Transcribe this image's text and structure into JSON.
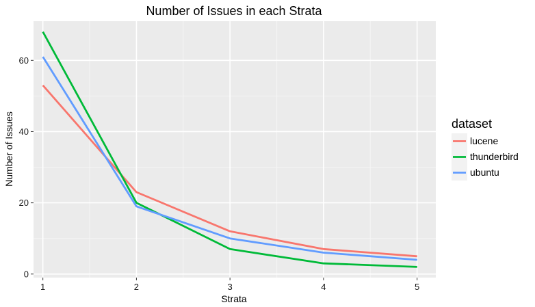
{
  "chart_data": {
    "type": "line",
    "title": "Number of Issues in each Strata",
    "xlabel": "Strata",
    "ylabel": "Number of Issues",
    "x": [
      1,
      2,
      3,
      4,
      5
    ],
    "xlim": [
      0.9,
      5.2
    ],
    "ylim": [
      -1,
      71
    ],
    "xticks": [
      1,
      2,
      3,
      4,
      5
    ],
    "yticks": [
      0,
      20,
      40,
      60
    ],
    "grid": true,
    "legend": {
      "title": "dataset",
      "position": "right"
    },
    "series": [
      {
        "name": "lucene",
        "color": "#F8766D",
        "values": [
          53,
          23,
          12,
          7,
          5
        ]
      },
      {
        "name": "thunderbird",
        "color": "#00BA38",
        "values": [
          68,
          20,
          7,
          3,
          2
        ]
      },
      {
        "name": "ubuntu",
        "color": "#619CFF",
        "values": [
          61,
          19,
          10,
          6,
          4
        ]
      }
    ]
  }
}
